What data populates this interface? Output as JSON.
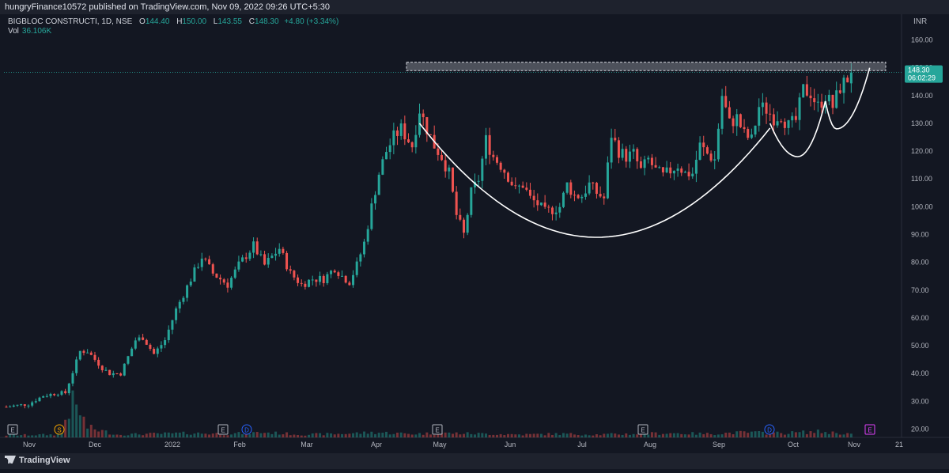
{
  "header": {
    "text": "hungryFinance10572 published on TradingView.com, Nov 09, 2022 09:26 UTC+5:30"
  },
  "symbol": {
    "name": "BIGBLOC CONSTRUCTI, 1D, NSE",
    "open_lab": "O",
    "open": "144.40",
    "high_lab": "H",
    "high": "150.00",
    "low_lab": "L",
    "low": "143.55",
    "close_lab": "C",
    "close": "148.30",
    "change": "+4.80 (+3.34%)"
  },
  "volume": {
    "label": "Vol",
    "value": "36.106K"
  },
  "currency": "INR",
  "footer": {
    "logo": "TradingView"
  },
  "colors": {
    "up": "#26a69a",
    "down": "#ef5350",
    "background": "#131722",
    "pattern": "#ffffff",
    "resistance": "#9598a1"
  },
  "chart_data": {
    "type": "candlestick",
    "y_axis_ticks": [
      "20.00",
      "30.00",
      "40.00",
      "50.00",
      "60.00",
      "70.00",
      "80.00",
      "90.00",
      "100.00",
      "110.00",
      "120.00",
      "130.00",
      "140.00",
      "150.00",
      "160.00"
    ],
    "ylim": [
      17,
      163
    ],
    "x_ticks": [
      "Nov",
      "Dec",
      "2022",
      "Feb",
      "Mar",
      "Apr",
      "May",
      "Jun",
      "Jul",
      "Aug",
      "Sep",
      "Oct",
      "Nov",
      "21"
    ],
    "last_price": "148.30",
    "countdown": "06:02:29",
    "resistance_zone": [
      149,
      152
    ],
    "pattern": "cup and handle",
    "event_markers": [
      "E",
      "S",
      "E",
      "D",
      "E",
      "E",
      "D",
      "E"
    ],
    "price_path": [
      [
        0,
        28
      ],
      [
        6,
        29
      ],
      [
        10,
        32
      ],
      [
        14,
        33
      ],
      [
        16,
        33
      ],
      [
        20,
        48
      ],
      [
        22,
        48
      ],
      [
        26,
        42
      ],
      [
        28,
        40
      ],
      [
        31,
        40
      ],
      [
        35,
        52
      ],
      [
        37,
        53
      ],
      [
        40,
        47
      ],
      [
        43,
        52
      ],
      [
        46,
        63
      ],
      [
        50,
        74
      ],
      [
        53,
        82
      ],
      [
        56,
        76
      ],
      [
        60,
        72
      ],
      [
        63,
        79
      ],
      [
        67,
        86
      ],
      [
        70,
        79
      ],
      [
        74,
        85
      ],
      [
        77,
        76
      ],
      [
        80,
        72
      ],
      [
        83,
        74
      ],
      [
        86,
        74
      ],
      [
        89,
        78
      ],
      [
        91,
        75
      ],
      [
        93,
        73
      ],
      [
        95,
        79
      ],
      [
        97,
        87
      ],
      [
        99,
        100
      ],
      [
        101,
        112
      ],
      [
        103,
        120
      ],
      [
        105,
        125
      ],
      [
        107,
        128
      ],
      [
        110,
        122
      ],
      [
        112,
        135
      ],
      [
        114,
        128
      ],
      [
        116,
        122
      ],
      [
        118,
        118
      ],
      [
        120,
        112
      ],
      [
        122,
        97
      ],
      [
        124,
        90
      ],
      [
        126,
        105
      ],
      [
        128,
        110
      ],
      [
        130,
        124
      ],
      [
        132,
        118
      ],
      [
        134,
        115
      ],
      [
        136,
        111
      ],
      [
        138,
        106
      ],
      [
        140,
        108
      ],
      [
        142,
        103
      ],
      [
        144,
        101
      ],
      [
        146,
        98
      ],
      [
        148,
        99
      ],
      [
        150,
        100
      ],
      [
        152,
        108
      ],
      [
        154,
        104
      ],
      [
        156,
        104
      ],
      [
        158,
        108
      ],
      [
        160,
        105
      ],
      [
        162,
        103
      ],
      [
        164,
        126
      ],
      [
        166,
        120
      ],
      [
        168,
        118
      ],
      [
        170,
        119
      ],
      [
        172,
        113
      ],
      [
        174,
        117
      ],
      [
        176,
        113
      ],
      [
        178,
        111
      ],
      [
        180,
        113
      ],
      [
        182,
        115
      ],
      [
        184,
        112
      ],
      [
        186,
        112
      ],
      [
        188,
        122
      ],
      [
        190,
        119
      ],
      [
        192,
        117
      ],
      [
        194,
        140
      ],
      [
        196,
        130
      ],
      [
        198,
        132
      ],
      [
        200,
        126
      ],
      [
        202,
        124
      ],
      [
        204,
        136
      ],
      [
        206,
        135
      ],
      [
        208,
        132
      ],
      [
        210,
        133
      ],
      [
        212,
        129
      ],
      [
        214,
        131
      ],
      [
        216,
        142
      ],
      [
        218,
        141
      ],
      [
        220,
        136
      ],
      [
        222,
        140
      ],
      [
        224,
        136
      ],
      [
        226,
        143
      ],
      [
        228,
        146
      ],
      [
        229,
        148.3
      ]
    ],
    "volume_path": [
      [
        0,
        3
      ],
      [
        14,
        4
      ],
      [
        18,
        48
      ],
      [
        20,
        35
      ],
      [
        22,
        14
      ],
      [
        30,
        4
      ],
      [
        40,
        5
      ],
      [
        50,
        6
      ],
      [
        60,
        5
      ],
      [
        70,
        7
      ],
      [
        80,
        4
      ],
      [
        90,
        5
      ],
      [
        100,
        7
      ],
      [
        110,
        5
      ],
      [
        120,
        6
      ],
      [
        130,
        5
      ],
      [
        140,
        4
      ],
      [
        150,
        5
      ],
      [
        160,
        4
      ],
      [
        170,
        5
      ],
      [
        180,
        6
      ],
      [
        190,
        5
      ],
      [
        200,
        7
      ],
      [
        210,
        6
      ],
      [
        220,
        8
      ],
      [
        229,
        5
      ]
    ]
  }
}
